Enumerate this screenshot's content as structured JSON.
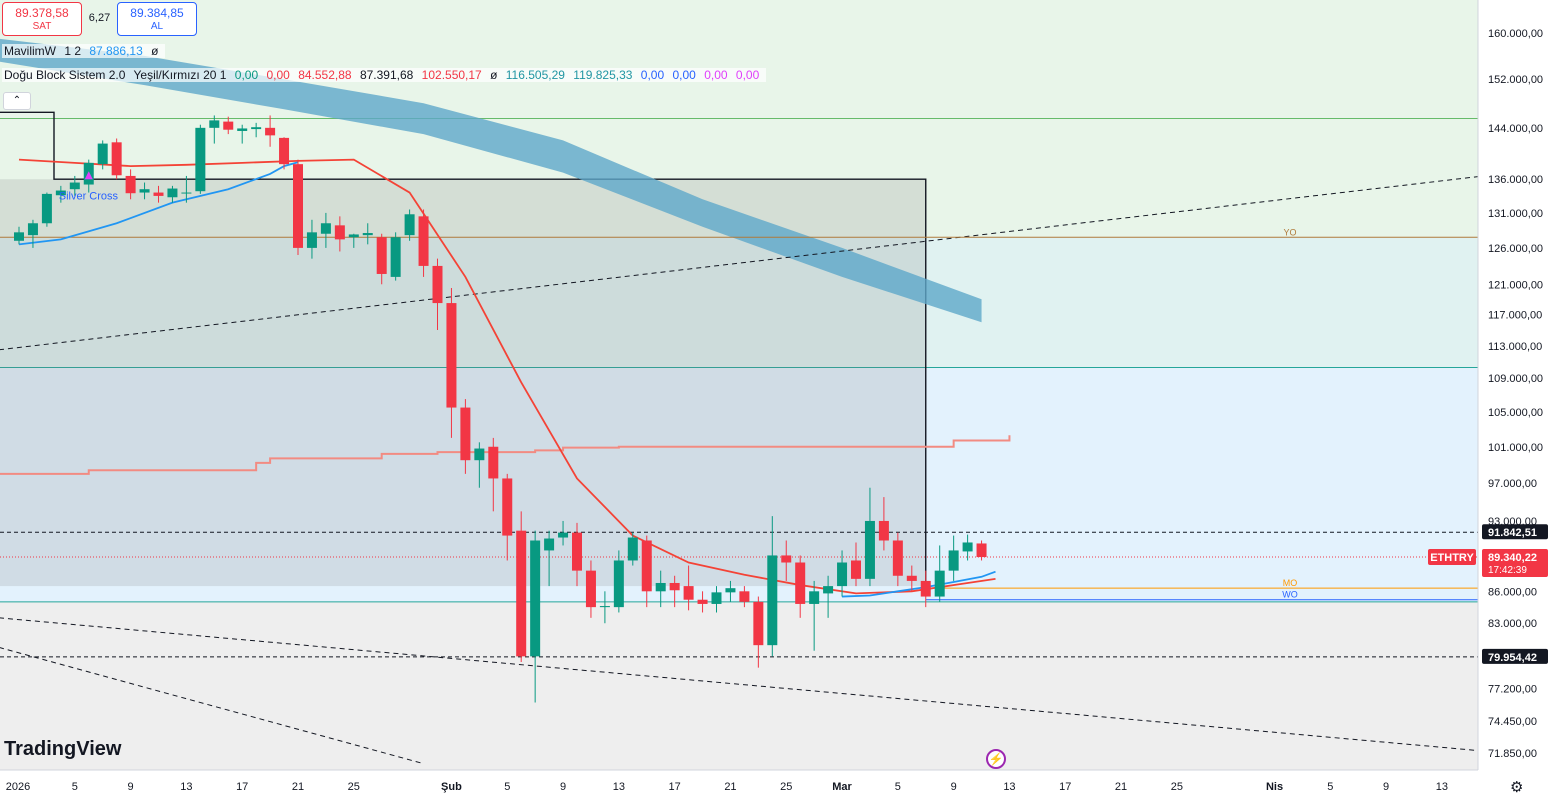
{
  "top_bar": {
    "sell_price": "89.378,58",
    "sell_label": "SAT",
    "spread": "6,27",
    "buy_price": "89.384,85",
    "buy_label": "AL"
  },
  "legend": {
    "row1": {
      "name": "MavilimW",
      "params": "1 2",
      "value": "87.886,13",
      "extra": "ø"
    },
    "row2": {
      "name": "Doğu Block Sistem 2.0",
      "params": "Yeşil/Kırmızı 20 1",
      "values": [
        "0,00",
        "0,00",
        "84.552,88",
        "87.391,68",
        "102.550,17",
        "ø",
        "116.505,29",
        "119.825,33",
        "0,00",
        "0,00",
        "0,00",
        "0,00"
      ]
    }
  },
  "branding": {
    "logo_text": "TradingView"
  },
  "icons": {
    "collapse": "chevron-up-icon",
    "bolt": "lightning-icon",
    "settings": "gear-icon"
  },
  "colors": {
    "up": "#089981",
    "down": "#f23645",
    "ma_blue": "#2196f3",
    "ma_red": "#f44336",
    "cloud": "#5ea7c9"
  },
  "chart_data": {
    "type": "candlestick",
    "symbol": "ETHTRY",
    "y_scale": "log",
    "ylim": [
      70500,
      166000
    ],
    "y_ticks": [
      "160.000,00",
      "152.000,00",
      "144.000,00",
      "136.000,00",
      "131.000,00",
      "126.000,00",
      "121.000,00",
      "117.000,00",
      "113.000,00",
      "109.000,00",
      "105.000,00",
      "101.000,00",
      "97.000,00",
      "93.000,00",
      "86.000,00",
      "83.000,00",
      "77.200,00",
      "74.450,00",
      "71.850,00"
    ],
    "y_tick_values": [
      160000,
      152000,
      144000,
      136000,
      131000,
      126000,
      121000,
      117000,
      113000,
      109000,
      105000,
      101000,
      97000,
      93000,
      86000,
      83000,
      77200,
      74450,
      71850
    ],
    "x_labels": [
      "2026",
      "5",
      "9",
      "13",
      "17",
      "21",
      "25",
      "Şub",
      "5",
      "9",
      "13",
      "17",
      "21",
      "25",
      "Mar",
      "5",
      "9",
      "13",
      "17",
      "21",
      "25",
      "Nis",
      "5",
      "9",
      "13"
    ],
    "x_label_days": [
      1,
      5,
      9,
      13,
      17,
      21,
      25,
      32,
      36,
      40,
      44,
      48,
      52,
      56,
      60,
      64,
      68,
      72,
      76,
      80,
      84,
      91,
      95,
      99,
      103
    ],
    "candles": [
      {
        "d": 1,
        "o": 127000,
        "h": 129000,
        "l": 126500,
        "c": 128200
      },
      {
        "d": 2,
        "o": 127800,
        "h": 130000,
        "l": 126000,
        "c": 129500
      },
      {
        "d": 3,
        "o": 129500,
        "h": 134000,
        "l": 129000,
        "c": 133800
      },
      {
        "d": 4,
        "o": 133600,
        "h": 135000,
        "l": 132500,
        "c": 134300
      },
      {
        "d": 5,
        "o": 134500,
        "h": 136500,
        "l": 133500,
        "c": 135500
      },
      {
        "d": 6,
        "o": 135200,
        "h": 139000,
        "l": 134000,
        "c": 138500
      },
      {
        "d": 7,
        "o": 138300,
        "h": 142000,
        "l": 137500,
        "c": 141500
      },
      {
        "d": 8,
        "o": 141700,
        "h": 142300,
        "l": 136000,
        "c": 136600
      },
      {
        "d": 9,
        "o": 136500,
        "h": 137500,
        "l": 133000,
        "c": 133900
      },
      {
        "d": 10,
        "o": 134000,
        "h": 135500,
        "l": 133000,
        "c": 134500
      },
      {
        "d": 11,
        "o": 134000,
        "h": 135000,
        "l": 132500,
        "c": 133500
      },
      {
        "d": 12,
        "o": 133300,
        "h": 135000,
        "l": 132500,
        "c": 134600
      },
      {
        "d": 13,
        "o": 134000,
        "h": 136500,
        "l": 132500,
        "c": 134000
      },
      {
        "d": 14,
        "o": 134200,
        "h": 144500,
        "l": 133800,
        "c": 144000
      },
      {
        "d": 15,
        "o": 144000,
        "h": 146000,
        "l": 141500,
        "c": 145200
      },
      {
        "d": 16,
        "o": 145000,
        "h": 145800,
        "l": 143000,
        "c": 143700
      },
      {
        "d": 17,
        "o": 143500,
        "h": 144500,
        "l": 141500,
        "c": 143900
      },
      {
        "d": 18,
        "o": 143800,
        "h": 144800,
        "l": 142500,
        "c": 144100
      },
      {
        "d": 19,
        "o": 144000,
        "h": 146000,
        "l": 141000,
        "c": 142800
      },
      {
        "d": 20,
        "o": 142400,
        "h": 142500,
        "l": 137500,
        "c": 138300
      },
      {
        "d": 21,
        "o": 138300,
        "h": 139000,
        "l": 125000,
        "c": 126000
      },
      {
        "d": 22,
        "o": 126000,
        "h": 130000,
        "l": 124500,
        "c": 128200
      },
      {
        "d": 23,
        "o": 128000,
        "h": 131000,
        "l": 126000,
        "c": 129500
      },
      {
        "d": 24,
        "o": 129200,
        "h": 130500,
        "l": 125500,
        "c": 127200
      },
      {
        "d": 25,
        "o": 127500,
        "h": 128000,
        "l": 126000,
        "c": 127900
      },
      {
        "d": 26,
        "o": 127800,
        "h": 129500,
        "l": 126500,
        "c": 128100
      },
      {
        "d": 27,
        "o": 127500,
        "h": 128000,
        "l": 121000,
        "c": 122400
      },
      {
        "d": 28,
        "o": 122000,
        "h": 128200,
        "l": 121500,
        "c": 127500
      },
      {
        "d": 29,
        "o": 127800,
        "h": 131500,
        "l": 127000,
        "c": 130800
      },
      {
        "d": 30,
        "o": 130500,
        "h": 131500,
        "l": 122000,
        "c": 123500
      },
      {
        "d": 31,
        "o": 123500,
        "h": 124500,
        "l": 115000,
        "c": 118500
      },
      {
        "d": 32,
        "o": 118500,
        "h": 120500,
        "l": 102000,
        "c": 105500
      },
      {
        "d": 33,
        "o": 105500,
        "h": 106500,
        "l": 98000,
        "c": 99500
      },
      {
        "d": 34,
        "o": 99500,
        "h": 101500,
        "l": 96500,
        "c": 100800
      },
      {
        "d": 35,
        "o": 101000,
        "h": 102000,
        "l": 94000,
        "c": 97500
      },
      {
        "d": 36,
        "o": 97500,
        "h": 98000,
        "l": 89000,
        "c": 91500
      },
      {
        "d": 37,
        "o": 92000,
        "h": 94000,
        "l": 79500,
        "c": 80000
      },
      {
        "d": 38,
        "o": 80000,
        "h": 92000,
        "l": 76000,
        "c": 91000
      },
      {
        "d": 39,
        "o": 90000,
        "h": 92000,
        "l": 86500,
        "c": 91200
      },
      {
        "d": 40,
        "o": 91300,
        "h": 93000,
        "l": 90500,
        "c": 91800
      },
      {
        "d": 41,
        "o": 91800,
        "h": 92800,
        "l": 86500,
        "c": 88000
      },
      {
        "d": 42,
        "o": 88000,
        "h": 89000,
        "l": 83500,
        "c": 84500
      },
      {
        "d": 43,
        "o": 84500,
        "h": 86000,
        "l": 83000,
        "c": 84600
      },
      {
        "d": 44,
        "o": 84500,
        "h": 90000,
        "l": 84000,
        "c": 89000
      },
      {
        "d": 45,
        "o": 89000,
        "h": 91800,
        "l": 88500,
        "c": 91300
      },
      {
        "d": 46,
        "o": 91000,
        "h": 91500,
        "l": 84500,
        "c": 86000
      },
      {
        "d": 47,
        "o": 86000,
        "h": 88000,
        "l": 84500,
        "c": 86800
      },
      {
        "d": 48,
        "o": 86800,
        "h": 87500,
        "l": 84500,
        "c": 86100
      },
      {
        "d": 49,
        "o": 86500,
        "h": 88500,
        "l": 84200,
        "c": 85200
      },
      {
        "d": 50,
        "o": 85200,
        "h": 86000,
        "l": 84000,
        "c": 84800
      },
      {
        "d": 51,
        "o": 84800,
        "h": 86500,
        "l": 84000,
        "c": 85900
      },
      {
        "d": 52,
        "o": 85900,
        "h": 87000,
        "l": 85000,
        "c": 86300
      },
      {
        "d": 53,
        "o": 86000,
        "h": 86500,
        "l": 84500,
        "c": 85000
      },
      {
        "d": 54,
        "o": 85000,
        "h": 85500,
        "l": 79000,
        "c": 81000
      },
      {
        "d": 55,
        "o": 81000,
        "h": 93500,
        "l": 80000,
        "c": 89500
      },
      {
        "d": 56,
        "o": 89500,
        "h": 91000,
        "l": 87000,
        "c": 88800
      },
      {
        "d": 57,
        "o": 88800,
        "h": 89500,
        "l": 83500,
        "c": 84800
      },
      {
        "d": 58,
        "o": 84800,
        "h": 87000,
        "l": 80500,
        "c": 86000
      },
      {
        "d": 59,
        "o": 85800,
        "h": 87500,
        "l": 83500,
        "c": 86500
      },
      {
        "d": 60,
        "o": 86500,
        "h": 90000,
        "l": 85500,
        "c": 88800
      },
      {
        "d": 61,
        "o": 89000,
        "h": 90800,
        "l": 86500,
        "c": 87200
      },
      {
        "d": 62,
        "o": 87200,
        "h": 96500,
        "l": 86500,
        "c": 93000
      },
      {
        "d": 63,
        "o": 93000,
        "h": 95500,
        "l": 90000,
        "c": 91000
      },
      {
        "d": 64,
        "o": 91000,
        "h": 91800,
        "l": 86500,
        "c": 87500
      },
      {
        "d": 65,
        "o": 87500,
        "h": 88500,
        "l": 86000,
        "c": 87000
      },
      {
        "d": 66,
        "o": 87000,
        "h": 88000,
        "l": 84500,
        "c": 85500
      },
      {
        "d": 67,
        "o": 85500,
        "h": 90500,
        "l": 85000,
        "c": 88000
      },
      {
        "d": 68,
        "o": 88000,
        "h": 91500,
        "l": 87000,
        "c": 90000
      },
      {
        "d": 69,
        "o": 89900,
        "h": 91600,
        "l": 89000,
        "c": 90800
      },
      {
        "d": 70,
        "o": 90700,
        "h": 91000,
        "l": 89000,
        "c": 89340
      }
    ],
    "ma_red": {
      "name": "",
      "d": [
        1,
        5,
        9,
        13,
        17,
        21,
        25,
        29,
        33,
        37,
        41,
        45,
        49,
        53,
        57,
        61,
        65,
        69,
        71
      ],
      "v": [
        139000,
        138500,
        138000,
        138200,
        138500,
        138800,
        139000,
        134000,
        122000,
        108500,
        97500,
        91500,
        88800,
        87600,
        86600,
        85800,
        86000,
        86800,
        87200
      ]
    },
    "ma_blue": {
      "d": [
        1,
        4,
        8,
        12,
        16,
        19,
        20,
        21
      ],
      "v": [
        126500,
        127200,
        129500,
        132500,
        134500,
        136800,
        138000,
        138600
      ]
    },
    "ma_blue2": {
      "d": [
        60,
        62,
        64,
        66,
        68,
        70,
        71
      ],
      "v": [
        85500,
        85600,
        86000,
        86400,
        86900,
        87400,
        87900
      ]
    },
    "step_line": {
      "d": [
        1,
        5,
        6,
        13,
        18,
        19,
        26,
        27,
        31,
        38,
        40,
        44,
        65,
        68,
        72
      ],
      "v": [
        98000,
        98000,
        98400,
        98400,
        99200,
        99700,
        99700,
        100200,
        100400,
        100600,
        100900,
        101000,
        101000,
        101700,
        102300
      ]
    },
    "cloud_band": {
      "d": [
        1,
        10,
        20,
        30,
        40,
        50,
        60,
        70
      ],
      "top": [
        159000,
        156000,
        152000,
        148000,
        142000,
        133000,
        126000,
        119000
      ],
      "bot": [
        155000,
        151000,
        147000,
        143000,
        137000,
        129000,
        122000,
        116000
      ]
    },
    "box": {
      "d_start": 1,
      "d_end": 66,
      "top": 136000,
      "bottom": 86500
    },
    "horizontal_lines": [
      {
        "name": "YO",
        "value": 127500,
        "color": "#b07a3a",
        "label": "YO"
      },
      {
        "name": "MO",
        "value": 86300,
        "color": "#ff9800",
        "label": "MO"
      },
      {
        "name": "WO",
        "value": 85200,
        "color": "#2962ff",
        "label": "WO"
      }
    ],
    "price_markers": [
      {
        "label": "91.842,51",
        "value": 91842.51,
        "kind": "black"
      },
      {
        "label": "79.954,42",
        "value": 79954.42,
        "kind": "black"
      },
      {
        "label": "89.340,22",
        "sub": "17:42:39",
        "value": 89340.22,
        "kind": "red",
        "tag": "ETHTRY"
      }
    ],
    "annotations": [
      {
        "text": "Silver Cross",
        "d": 6,
        "v": 133000
      }
    ],
    "dashed_trend": [
      {
        "d1": 1,
        "v1": 112500,
        "d2": 106,
        "v2": 136500
      },
      {
        "d1": 1,
        "v1": 83500,
        "d2": 106,
        "v2": 72000
      },
      {
        "d1": 1,
        "v1": 80800,
        "d2": 30,
        "v2": 71000
      }
    ]
  }
}
